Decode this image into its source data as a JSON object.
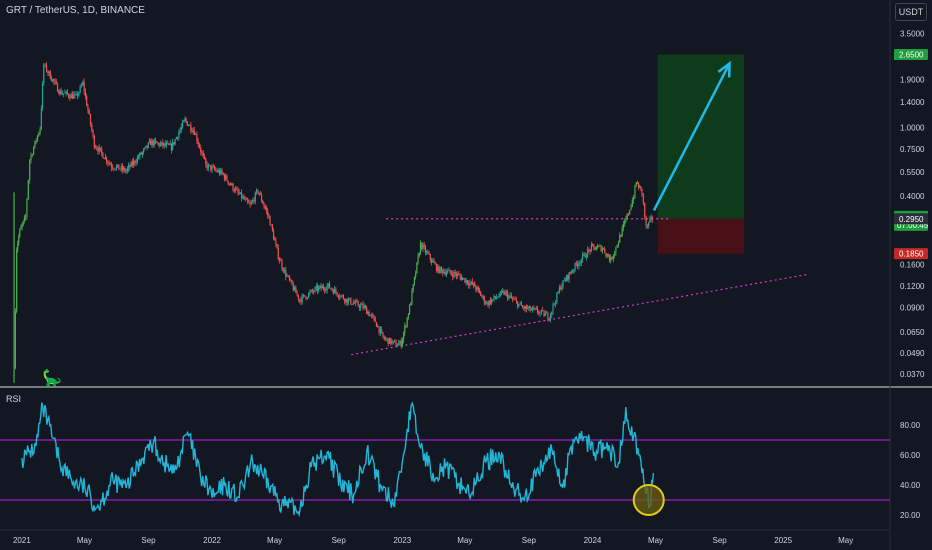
{
  "header": {
    "symbol_title": "GRT / TetherUS, 1D, BINANCE",
    "currency_button": "USDT",
    "rsi_label": "RSI"
  },
  "colors": {
    "background": "#131722",
    "up_candle": "#26a69a",
    "down_candle": "#ef5350",
    "pump_candle": "#4caf50",
    "overbought_line": "#a020c0",
    "rsi_line": "#22b5d6",
    "dotted_line": "#d63bd1",
    "arrow": "#1fb9e8",
    "target_zone": "#0f3d1d",
    "stop_zone": "#4a1017",
    "highlight_circle": "#e0c91d"
  },
  "icons": {
    "logo": "tradingview-dino-icon"
  },
  "chart_data": [
    {
      "type": "candlestick",
      "title": "GRT / TetherUS, 1D, BINANCE",
      "y_scale": "log",
      "y_tick_labels": [
        "3.5000",
        "1.9000",
        "1.4000",
        "1.0000",
        "0.7500",
        "0.5500",
        "0.4000",
        "0.1600",
        "0.1200",
        "0.0900",
        "0.0650",
        "0.0490",
        "0.0370"
      ],
      "y_ticks": [
        3.5,
        1.9,
        1.4,
        1.0,
        0.75,
        0.55,
        0.4,
        0.16,
        0.12,
        0.09,
        0.065,
        0.049,
        0.037
      ],
      "x_tick_labels": [
        "2021",
        "May",
        "Sep",
        "2022",
        "May",
        "Sep",
        "2023",
        "May",
        "Sep",
        "2024",
        "May",
        "Sep",
        "2025",
        "May"
      ],
      "x_ticks": [
        "2021-01",
        "2021-05",
        "2021-09",
        "2022-01",
        "2022-05",
        "2022-09",
        "2023-01",
        "2023-05",
        "2023-09",
        "2024-01",
        "2024-05",
        "2024-09",
        "2025-01",
        "2025-05"
      ],
      "ylim": [
        0.032,
        4.2
      ],
      "xlim": [
        "2020-11-20",
        "2025-07-25"
      ],
      "close_series": {
        "x": [
          "2020-12-17",
          "2020-12-22",
          "2020-12-28",
          "2021-01-08",
          "2021-01-16",
          "2021-02-05",
          "2021-02-12",
          "2021-02-20",
          "2021-03-15",
          "2021-04-15",
          "2021-04-28",
          "2021-05-20",
          "2021-06-22",
          "2021-07-20",
          "2021-08-25",
          "2021-09-05",
          "2021-10-15",
          "2021-11-10",
          "2021-11-28",
          "2021-12-20",
          "2022-01-20",
          "2022-02-15",
          "2022-03-15",
          "2022-03-30",
          "2022-04-20",
          "2022-05-08",
          "2022-05-20",
          "2022-06-18",
          "2022-07-20",
          "2022-08-12",
          "2022-09-15",
          "2022-10-20",
          "2022-11-10",
          "2022-11-25",
          "2022-12-20",
          "2022-12-30",
          "2023-01-15",
          "2023-02-05",
          "2023-03-10",
          "2023-04-15",
          "2023-05-20",
          "2023-06-12",
          "2023-07-15",
          "2023-08-20",
          "2023-09-20",
          "2023-10-10",
          "2023-11-01",
          "2023-12-01",
          "2023-12-30",
          "2024-01-20",
          "2024-02-05",
          "2024-02-20",
          "2024-03-10",
          "2024-03-20",
          "2024-03-25",
          "2024-04-05",
          "2024-04-13",
          "2024-04-25"
        ],
        "close": [
          0.04,
          0.2,
          0.25,
          0.3,
          0.65,
          1.0,
          2.3,
          2.1,
          1.6,
          1.5,
          1.8,
          0.8,
          0.6,
          0.56,
          0.74,
          0.82,
          0.77,
          1.1,
          0.95,
          0.6,
          0.54,
          0.43,
          0.35,
          0.43,
          0.3,
          0.18,
          0.145,
          0.1,
          0.115,
          0.12,
          0.1,
          0.09,
          0.075,
          0.06,
          0.055,
          0.056,
          0.09,
          0.21,
          0.15,
          0.14,
          0.12,
          0.095,
          0.11,
          0.09,
          0.085,
          0.08,
          0.12,
          0.16,
          0.2,
          0.2,
          0.17,
          0.22,
          0.32,
          0.4,
          0.48,
          0.42,
          0.26,
          0.2986
        ]
      },
      "price_tags": [
        {
          "label": "2.6500",
          "value": 2.65,
          "color": "#1e9e3c"
        },
        {
          "label": "0.2986",
          "value": 0.2986,
          "sub": "07:00:45",
          "color": "#1e9e3c"
        },
        {
          "label": "0.2950",
          "value": 0.295,
          "color": "#2a2e39"
        },
        {
          "label": "0.1850",
          "value": 0.185,
          "color": "#c62828"
        }
      ],
      "annotations": {
        "resistance_level": {
          "y": 0.295,
          "from": "2022-12-01",
          "to": "2024-05-25"
        },
        "rising_trendline": {
          "from": [
            "2022-09-25",
            0.048
          ],
          "to": [
            "2025-02-15",
            0.14
          ]
        },
        "position": {
          "from": "2024-05-05",
          "to": "2024-10-18",
          "entry": 0.295,
          "target": 2.65,
          "stop": 0.185
        },
        "projection_arrow": {
          "from": [
            "2024-04-28",
            0.33
          ],
          "to": [
            "2024-09-20",
            2.35
          ]
        }
      }
    },
    {
      "type": "line",
      "title": "RSI",
      "y_tick_labels": [
        "80.00",
        "60.00",
        "40.00",
        "20.00"
      ],
      "y_ticks": [
        80,
        60,
        40,
        20
      ],
      "ylim": [
        10,
        100
      ],
      "bands": [
        70,
        30
      ],
      "x": [
        "2021-01-01",
        "2021-01-10",
        "2021-01-28",
        "2021-02-10",
        "2021-03-15",
        "2021-04-10",
        "2021-05-02",
        "2021-05-25",
        "2021-06-25",
        "2021-07-20",
        "2021-08-25",
        "2021-09-10",
        "2021-10-01",
        "2021-10-20",
        "2021-11-15",
        "2021-12-10",
        "2022-01-05",
        "2022-01-25",
        "2022-02-20",
        "2022-03-20",
        "2022-04-10",
        "2022-05-15",
        "2022-06-15",
        "2022-07-10",
        "2022-08-10",
        "2022-09-05",
        "2022-09-30",
        "2022-10-25",
        "2022-11-20",
        "2022-12-15",
        "2023-01-01",
        "2023-01-18",
        "2023-02-05",
        "2023-03-01",
        "2023-03-25",
        "2023-04-20",
        "2023-05-15",
        "2023-06-10",
        "2023-07-05",
        "2023-07-30",
        "2023-08-25",
        "2023-09-20",
        "2023-10-15",
        "2023-11-05",
        "2023-11-25",
        "2023-12-15",
        "2024-01-05",
        "2024-01-25",
        "2024-02-20",
        "2024-03-05",
        "2024-03-20",
        "2024-04-05",
        "2024-04-14",
        "2024-04-20",
        "2024-04-27"
      ],
      "values": [
        58,
        60,
        66,
        92,
        55,
        42,
        38,
        25,
        43,
        38,
        62,
        68,
        55,
        48,
        75,
        45,
        32,
        40,
        32,
        55,
        45,
        28,
        22,
        52,
        62,
        40,
        34,
        63,
        40,
        27,
        55,
        93,
        65,
        48,
        52,
        41,
        35,
        55,
        62,
        38,
        33,
        48,
        64,
        38,
        70,
        72,
        62,
        65,
        55,
        92,
        72,
        48,
        38,
        26,
        48
      ]
    }
  ]
}
